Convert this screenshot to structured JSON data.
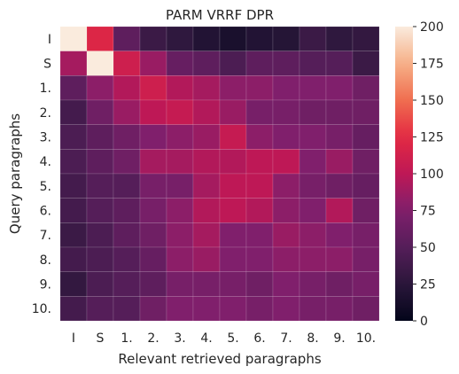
{
  "chart_data": {
    "type": "heatmap",
    "title": "PARM VRRF DPR",
    "xlabel": "Relevant retrieved paragraphs",
    "ylabel": "Query paragraphs",
    "x_categories": [
      "I",
      "S",
      "1.",
      "2.",
      "3.",
      "4.",
      "5.",
      "6.",
      "7.",
      "8.",
      "9.",
      "10."
    ],
    "y_categories": [
      "I",
      "S",
      "1.",
      "2.",
      "3.",
      "4.",
      "5.",
      "6.",
      "7.",
      "8.",
      "9.",
      "10."
    ],
    "values": [
      [
        200,
        120,
        55,
        35,
        28,
        20,
        15,
        20,
        22,
        35,
        28,
        30
      ],
      [
        90,
        200,
        110,
        85,
        60,
        55,
        45,
        55,
        55,
        50,
        50,
        35
      ],
      [
        55,
        80,
        95,
        110,
        95,
        90,
        80,
        80,
        75,
        75,
        75,
        65
      ],
      [
        40,
        65,
        85,
        100,
        105,
        95,
        85,
        70,
        70,
        65,
        65,
        65
      ],
      [
        45,
        55,
        65,
        75,
        80,
        85,
        105,
        80,
        75,
        75,
        70,
        60
      ],
      [
        45,
        55,
        65,
        90,
        90,
        95,
        95,
        100,
        100,
        75,
        85,
        65
      ],
      [
        40,
        50,
        50,
        70,
        70,
        90,
        100,
        100,
        80,
        70,
        65,
        60
      ],
      [
        40,
        50,
        55,
        70,
        80,
        95,
        100,
        95,
        80,
        75,
        95,
        65
      ],
      [
        35,
        45,
        55,
        65,
        80,
        90,
        75,
        75,
        85,
        80,
        75,
        70
      ],
      [
        40,
        45,
        50,
        60,
        80,
        85,
        75,
        75,
        80,
        80,
        80,
        70
      ],
      [
        30,
        45,
        50,
        55,
        70,
        70,
        70,
        65,
        75,
        70,
        65,
        70
      ],
      [
        40,
        50,
        50,
        65,
        75,
        75,
        75,
        70,
        75,
        70,
        70,
        65
      ]
    ],
    "colorbar": {
      "min": 0,
      "max": 200,
      "ticks": [
        0,
        25,
        50,
        75,
        100,
        125,
        150,
        175,
        200
      ]
    }
  }
}
